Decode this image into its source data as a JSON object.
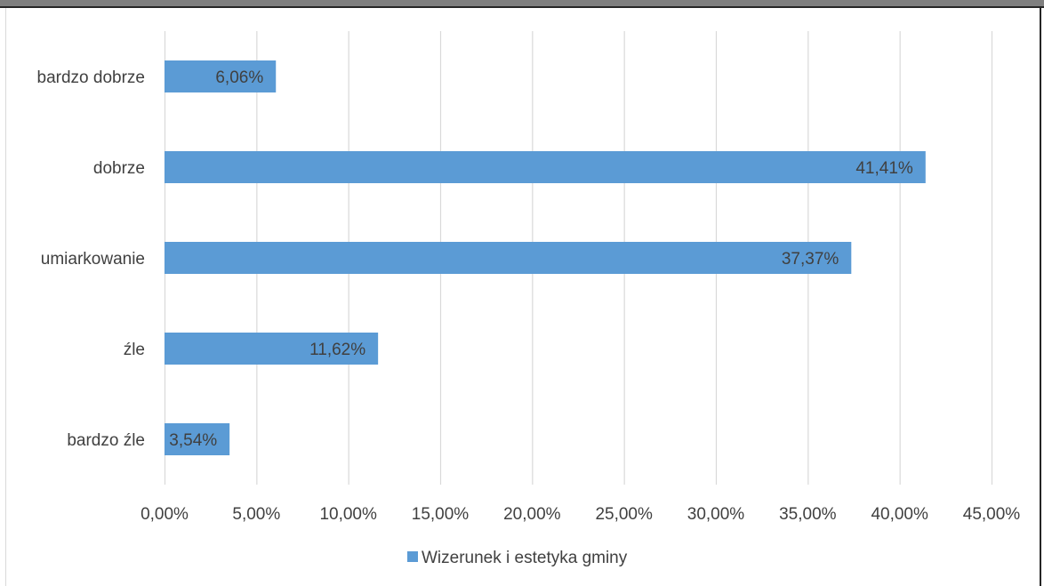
{
  "chart_data": {
    "type": "bar",
    "orientation": "horizontal",
    "categories": [
      "bardzo dobrze",
      "dobrze",
      "umiarkowanie",
      "źle",
      "bardzo źle"
    ],
    "series": [
      {
        "name": "Wizerunek i estetyka gminy",
        "values": [
          6.06,
          41.41,
          37.37,
          11.62,
          3.54
        ],
        "labels": [
          "6,06%",
          "41,41%",
          "37,37%",
          "11,62%",
          "3,54%"
        ],
        "color": "#5b9bd5"
      }
    ],
    "xlim": [
      0,
      45
    ],
    "xticks": [
      0,
      5,
      10,
      15,
      20,
      25,
      30,
      35,
      40,
      45
    ],
    "xtick_labels": [
      "0,00%",
      "5,00%",
      "10,00%",
      "15,00%",
      "20,00%",
      "25,00%",
      "30,00%",
      "35,00%",
      "40,00%",
      "45,00%"
    ],
    "grid": "vertical",
    "legend": "bottom",
    "gridline_color": "#d9d9d9",
    "text_color": "#404040"
  }
}
